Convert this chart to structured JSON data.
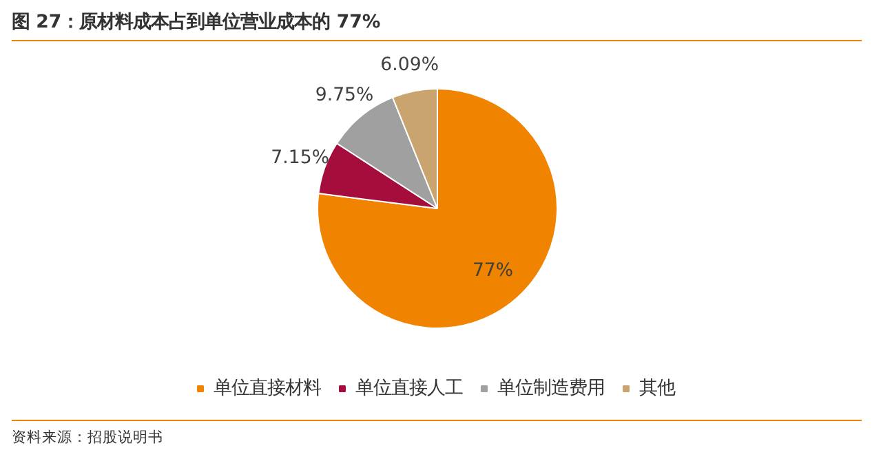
{
  "chart_data": {
    "type": "pie",
    "title": "图 27：原材料成本占到单位营业成本的 77%",
    "categories": [
      "单位直接材料",
      "单位直接人工",
      "单位制造费用",
      "其他"
    ],
    "values": [
      77,
      7.15,
      9.75,
      6.09
    ],
    "colors": [
      "#f08300",
      "#a50d3c",
      "#a0a0a0",
      "#c9a46e"
    ],
    "value_labels": [
      "77%",
      "7.15%",
      "9.75%",
      "6.09%"
    ],
    "legend": "bottom",
    "annotations": [
      "资料来源：招股说明书"
    ]
  }
}
